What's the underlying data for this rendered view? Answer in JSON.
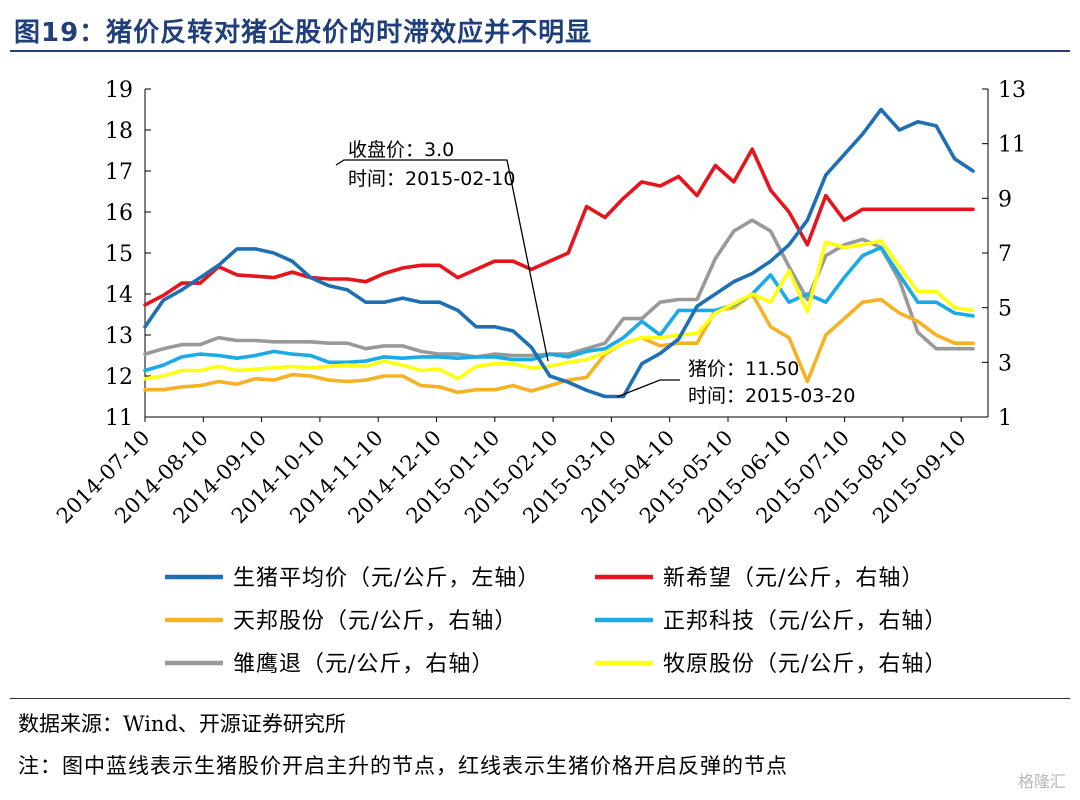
{
  "title": "图19：猪价反转对猪企股价的时滞效应并不明显",
  "source": "数据来源：Wind、开源证券研究所",
  "note": "注：图中蓝线表示生猪股价开启主升的节点，红线表示生猪价格开启反弹的节点",
  "watermark": "格隆汇",
  "chart_data": {
    "type": "line",
    "left_axis": {
      "range": [
        11,
        19
      ],
      "ticks": [
        11,
        12,
        13,
        14,
        15,
        16,
        17,
        18,
        19
      ]
    },
    "right_axis": {
      "range": [
        1,
        13
      ],
      "ticks": [
        1,
        3,
        5,
        7,
        9,
        11,
        13
      ]
    },
    "x_tick_labels": [
      "2014-07-10",
      "2014-08-10",
      "2014-09-10",
      "2014-10-10",
      "2014-11-10",
      "2014-12-10",
      "2015-01-10",
      "2015-02-10",
      "2015-03-10",
      "2015-04-10",
      "2015-05-10",
      "2015-06-10",
      "2015-07-10",
      "2015-08-10",
      "2015-09-10"
    ],
    "legend_placement": "bottom",
    "series": [
      {
        "name": "生猪平均价（元/公斤，左轴）",
        "axis": "left",
        "color": "#1f6fb5",
        "values": [
          13.2,
          13.85,
          14.1,
          14.4,
          14.7,
          15.1,
          15.1,
          15.0,
          14.8,
          14.4,
          14.2,
          14.1,
          13.8,
          13.8,
          13.9,
          13.8,
          13.8,
          13.6,
          13.2,
          13.2,
          13.1,
          12.7,
          12.0,
          11.85,
          11.65,
          11.5,
          11.5,
          12.3,
          12.55,
          12.9,
          13.7,
          14.0,
          14.3,
          14.5,
          14.8,
          15.2,
          15.8,
          16.9,
          17.4,
          17.9,
          18.5,
          18.0,
          18.2,
          18.1,
          17.3,
          17.0
        ]
      },
      {
        "name": "新希望（元/公斤，右轴）",
        "axis": "right",
        "color": "#e6141b",
        "values": [
          5.1,
          5.45,
          5.9,
          5.9,
          6.5,
          6.2,
          6.15,
          6.1,
          6.3,
          6.1,
          6.05,
          6.05,
          5.95,
          6.25,
          6.45,
          6.55,
          6.55,
          6.1,
          6.4,
          6.7,
          6.7,
          6.4,
          6.7,
          7.0,
          8.7,
          8.3,
          9.0,
          9.6,
          9.45,
          9.8,
          9.1,
          10.2,
          9.6,
          10.8,
          9.3,
          8.5,
          7.3,
          9.1,
          8.2,
          8.6,
          8.6,
          8.6,
          8.6,
          8.6,
          8.6,
          8.6
        ]
      },
      {
        "name": "天邦股份（元/公斤，右轴）",
        "axis": "right",
        "color": "#f5b224",
        "values": [
          2.0,
          2.0,
          2.1,
          2.15,
          2.3,
          2.2,
          2.4,
          2.35,
          2.55,
          2.5,
          2.35,
          2.3,
          2.35,
          2.5,
          2.5,
          2.15,
          2.1,
          1.9,
          2.0,
          2.0,
          2.15,
          1.95,
          2.15,
          2.35,
          2.45,
          3.3,
          3.7,
          3.9,
          3.6,
          3.7,
          3.7,
          4.9,
          5.0,
          5.5,
          4.3,
          3.9,
          2.3,
          4.0,
          4.6,
          5.2,
          5.3,
          4.8,
          4.5,
          4.0,
          3.7,
          3.7
        ]
      },
      {
        "name": "正邦科技（元/公斤，右轴）",
        "axis": "right",
        "color": "#1aabe6",
        "values": [
          2.7,
          2.9,
          3.2,
          3.3,
          3.25,
          3.15,
          3.25,
          3.4,
          3.3,
          3.25,
          3.0,
          3.0,
          3.05,
          3.2,
          3.15,
          3.2,
          3.2,
          3.15,
          3.2,
          3.2,
          3.1,
          3.1,
          3.3,
          3.2,
          3.4,
          3.5,
          3.9,
          4.5,
          4.0,
          4.9,
          4.9,
          4.9,
          5.1,
          5.5,
          6.2,
          5.2,
          5.5,
          5.2,
          6.1,
          6.9,
          7.2,
          6.2,
          5.2,
          5.2,
          4.8,
          4.7
        ]
      },
      {
        "name": "雏鹰退（元/公斤，右轴）",
        "axis": "right",
        "color": "#999999",
        "values": [
          3.3,
          3.5,
          3.65,
          3.65,
          3.9,
          3.8,
          3.8,
          3.75,
          3.75,
          3.75,
          3.7,
          3.7,
          3.5,
          3.6,
          3.6,
          3.4,
          3.3,
          3.3,
          3.2,
          3.3,
          3.25,
          3.25,
          3.3,
          3.3,
          3.5,
          3.7,
          4.6,
          4.6,
          5.2,
          5.3,
          5.3,
          6.8,
          7.8,
          8.2,
          7.8,
          6.5,
          5.3,
          6.9,
          7.3,
          7.5,
          7.2,
          6.0,
          4.1,
          3.5,
          3.5,
          3.5
        ]
      },
      {
        "name": "牧原股份（元/公斤，右轴）",
        "axis": "right",
        "color": "#ffff14",
        "values": [
          2.4,
          2.5,
          2.7,
          2.7,
          2.85,
          2.7,
          2.75,
          2.8,
          2.85,
          2.8,
          2.85,
          2.9,
          2.85,
          3.05,
          2.9,
          2.7,
          2.75,
          2.4,
          2.85,
          2.95,
          2.95,
          2.8,
          2.85,
          3.0,
          3.1,
          3.35,
          3.7,
          3.9,
          3.9,
          4.0,
          4.05,
          4.8,
          5.15,
          5.5,
          5.2,
          6.35,
          4.85,
          7.4,
          7.2,
          7.3,
          7.45,
          6.5,
          5.6,
          5.6,
          5.0,
          4.9
        ]
      }
    ],
    "annotations": [
      {
        "lines": [
          "收盘价：3.0",
          "时间：2015-02-10"
        ]
      },
      {
        "lines": [
          "猪价：11.50",
          "时间：2015-03-20"
        ]
      }
    ]
  }
}
